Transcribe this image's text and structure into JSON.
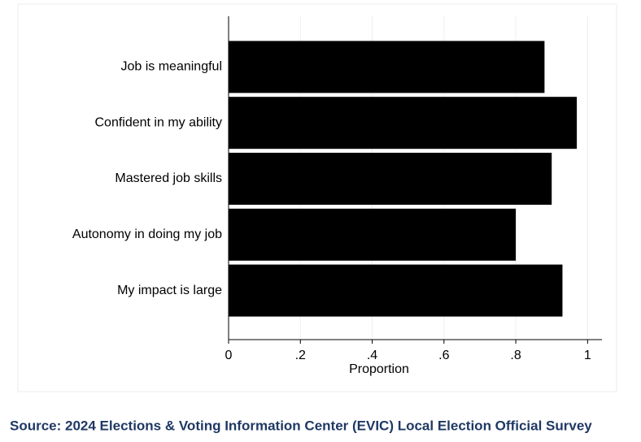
{
  "chart_data": {
    "type": "barh",
    "categories": [
      "Job is meaningful",
      "Confident in my ability",
      "Mastered job skills",
      "Autonomy in doing my job",
      "My impact is large"
    ],
    "values": [
      0.88,
      0.97,
      0.9,
      0.8,
      0.93
    ],
    "color": "#000000",
    "xlabel": "Proportion",
    "xlim": [
      0,
      1.04
    ],
    "xticks": [
      0,
      {
        "value": 0.2,
        "label": ".2"
      },
      {
        "value": 0.4,
        "label": ".4"
      },
      {
        "value": 0.6,
        "label": ".6"
      },
      {
        "value": 0.8,
        "label": ".8"
      },
      1
    ],
    "grid": true,
    "source": "Source: 2024 Elections & Voting Information Center (EVIC) Local Election Official Survey"
  }
}
